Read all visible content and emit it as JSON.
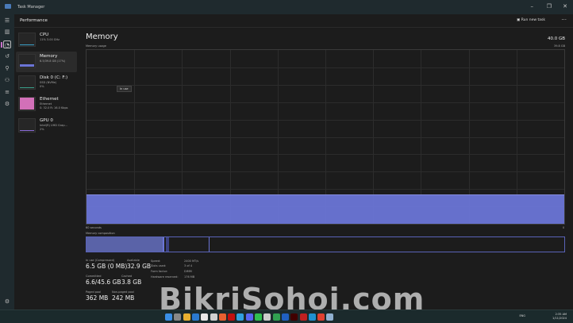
{
  "window": {
    "title": "Task Manager",
    "controls": [
      "–",
      "❐",
      "✕"
    ]
  },
  "header": {
    "title": "Performance",
    "run_new_task": "Run new task",
    "more": "···"
  },
  "nav_icons": [
    "hamburger-icon",
    "processes-icon",
    "performance-icon",
    "app-history-icon",
    "startup-icon",
    "users-icon",
    "details-icon",
    "services-icon"
  ],
  "devices": [
    {
      "name": "CPU",
      "sub": "11% 3.00 GHz",
      "color": "#3aa0c8"
    },
    {
      "name": "Memory",
      "sub": "6.5/39.8 GB (17%)",
      "color": "#6b75d6"
    },
    {
      "name": "Disk 0 (C: F:)",
      "sub": "SSD (NVMe)\n0%",
      "color": "#3aa08a"
    },
    {
      "name": "Ethernet",
      "sub": "Ethernet\nS: 32.0 R: 16.0 Kbps",
      "color": "#d270b8"
    },
    {
      "name": "GPU 0",
      "sub": "Intel(R) UHD Grap...\n2%",
      "color": "#8a6bd6"
    }
  ],
  "memory": {
    "title": "Memory",
    "usage_label": "Memory usage",
    "total": "40.0 GB",
    "max": "39.8 GB",
    "tooltip": "In use",
    "time_left": "60 seconds",
    "time_right": "0",
    "usage_percent": 17,
    "composition_label": "Memory composition",
    "in_use": "6.5 GB (0 MB)",
    "in_use_label": "In use (Compressed)",
    "available": "32.9 GB",
    "available_label": "Available",
    "committed": "6.6/45.6 GB",
    "committed_label": "Committed",
    "cached": "3.8 GB",
    "cached_label": "Cached",
    "paged": "362 MB",
    "paged_label": "Paged pool",
    "nonpaged": "242 MB",
    "nonpaged_label": "Non-paged pool",
    "speed_label": "Speed:",
    "speed": "2400 MT/s",
    "slots_label": "Slots used:",
    "slots": "3 of 4",
    "form_label": "Form factor:",
    "form": "DIMM",
    "reserved_label": "Hardware reserved:",
    "reserved": "176 MB",
    "accent": "#6b75d6"
  },
  "taskbar": {
    "icons": [
      "start-icon",
      "search-icon",
      "file-explorer-icon",
      "widgets-icon",
      "store-icon",
      "photos-icon",
      "app-icon",
      "netflix-icon",
      "telegram-icon",
      "discord-icon",
      "whatsapp-icon",
      "app2-icon",
      "excel-icon",
      "word-icon",
      "illustrator-icon",
      "acrobat-icon",
      "edge-icon",
      "chrome-icon",
      "task-manager-icon"
    ],
    "tray_lang": "ENG",
    "time": "2:35 AM",
    "date": "1/11/2024"
  },
  "watermark": "BikriSohoj.com"
}
